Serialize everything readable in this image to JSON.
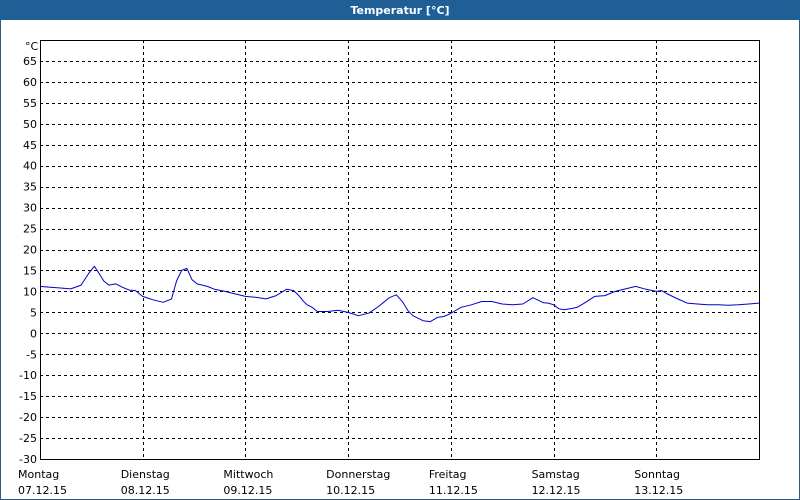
{
  "chart_data": {
    "type": "line",
    "title": "Temperatur [°C]",
    "ylabel": "°C",
    "xlabel": "",
    "ylim": [
      -30,
      70
    ],
    "yticks": [
      -30,
      -25,
      -20,
      -15,
      -10,
      -5,
      0,
      5,
      10,
      15,
      20,
      25,
      30,
      35,
      40,
      45,
      50,
      55,
      60,
      65
    ],
    "xlim": [
      0,
      7
    ],
    "grid": true,
    "days": [
      {
        "day": "Montag",
        "date": "07.12.15"
      },
      {
        "day": "Dienstag",
        "date": "08.12.15"
      },
      {
        "day": "Mittwoch",
        "date": "09.12.15"
      },
      {
        "day": "Donnerstag",
        "date": "10.12.15"
      },
      {
        "day": "Freitag",
        "date": "11.12.15"
      },
      {
        "day": "Samstag",
        "date": "12.12.15"
      },
      {
        "day": "Sonntag",
        "date": "13.12.15"
      }
    ],
    "series": [
      {
        "color": "#0000cc",
        "x": [
          0.0,
          0.1,
          0.2,
          0.3,
          0.4,
          0.48,
          0.53,
          0.57,
          0.62,
          0.67,
          0.74,
          0.8,
          0.87,
          0.93,
          1.0,
          1.1,
          1.2,
          1.28,
          1.33,
          1.38,
          1.43,
          1.48,
          1.53,
          1.58,
          1.63,
          1.7,
          1.8,
          1.9,
          2.0,
          2.1,
          2.2,
          2.3,
          2.4,
          2.47,
          2.52,
          2.57,
          2.6,
          2.65,
          2.7,
          2.8,
          2.9,
          3.0,
          3.1,
          3.2,
          3.3,
          3.4,
          3.47,
          3.53,
          3.58,
          3.63,
          3.68,
          3.73,
          3.8,
          3.87,
          3.93,
          3.98,
          4.03,
          4.1,
          4.2,
          4.3,
          4.4,
          4.5,
          4.6,
          4.7,
          4.8,
          4.9,
          4.95,
          5.0,
          5.05,
          5.1,
          5.17,
          5.23,
          5.3,
          5.4,
          5.5,
          5.6,
          5.7,
          5.8,
          5.9,
          6.0,
          6.05,
          6.1,
          6.2,
          6.3,
          6.4,
          6.5,
          6.6,
          6.7,
          6.8,
          6.9,
          7.0
        ],
        "values": [
          11.2,
          11.0,
          10.8,
          10.6,
          11.5,
          14.5,
          16.0,
          14.5,
          12.5,
          11.5,
          11.8,
          11.0,
          10.3,
          10.2,
          8.8,
          8.0,
          7.4,
          8.2,
          12.5,
          15.0,
          15.5,
          12.8,
          11.8,
          11.5,
          11.2,
          10.5,
          10.0,
          9.4,
          8.8,
          8.6,
          8.2,
          9.0,
          10.5,
          10.2,
          9.0,
          7.5,
          6.8,
          6.2,
          5.2,
          5.2,
          5.5,
          5.0,
          4.2,
          4.8,
          6.5,
          8.5,
          9.2,
          7.5,
          5.5,
          4.2,
          3.6,
          3.0,
          2.8,
          3.8,
          4.0,
          4.5,
          5.2,
          6.2,
          6.8,
          7.6,
          7.6,
          7.0,
          6.8,
          7.0,
          8.5,
          7.3,
          7.2,
          6.8,
          5.9,
          5.6,
          5.9,
          6.2,
          7.2,
          8.8,
          9.0,
          10.0,
          10.6,
          11.2,
          10.5,
          10.0,
          10.2,
          9.5,
          8.3,
          7.2,
          7.0,
          6.8,
          6.8,
          6.7,
          6.8,
          7.0,
          7.2
        ]
      }
    ]
  }
}
